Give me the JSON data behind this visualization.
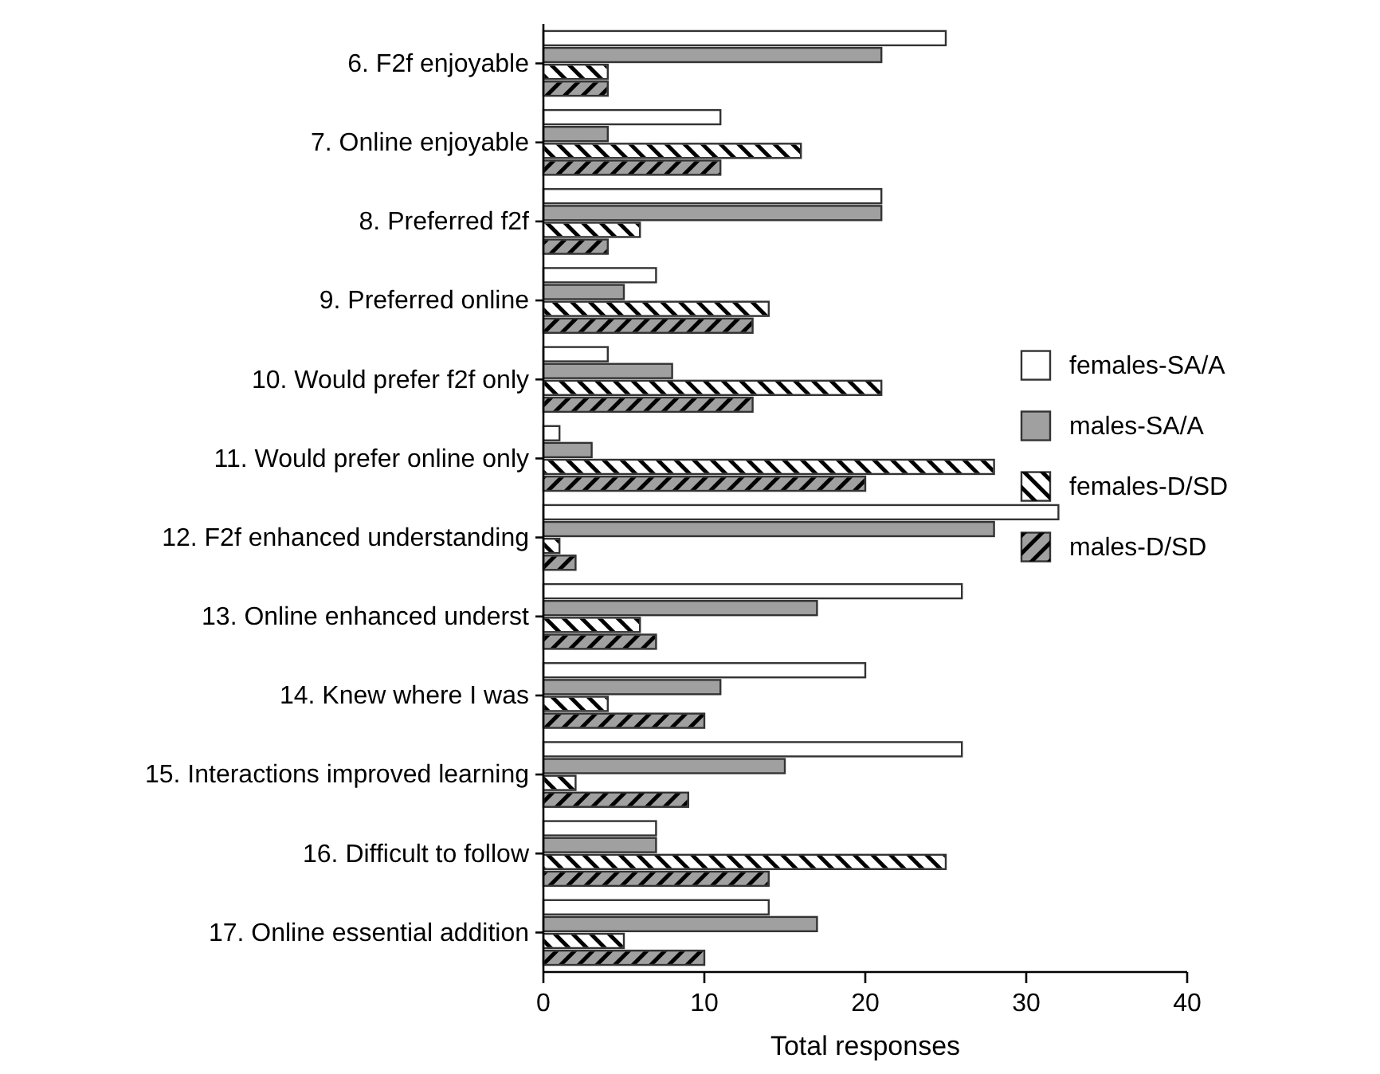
{
  "chart_data": {
    "type": "bar",
    "orientation": "horizontal",
    "xlabel": "Total responses",
    "categories": [
      "6. F2f enjoyable",
      "7. Online enjoyable",
      "8. Preferred f2f",
      "9. Preferred online",
      "10. Would prefer f2f only",
      "11. Would prefer online only",
      "12. F2f enhanced understanding",
      "13. Online enhanced underst",
      "14. Knew where I was",
      "15. Interactions improved learning",
      "16. Difficult to follow",
      "17. Online essential addition"
    ],
    "series": [
      {
        "name": "females-SA/A",
        "color": "#ffffff",
        "values": [
          25,
          11,
          21,
          7,
          4,
          1,
          32,
          26,
          20,
          26,
          7,
          14
        ]
      },
      {
        "name": "males-SA/A",
        "color": "#a0a0a0",
        "values": [
          21,
          4,
          21,
          5,
          8,
          3,
          28,
          17,
          11,
          15,
          7,
          17
        ]
      },
      {
        "name": "females-D/SD",
        "color": "#ffffff",
        "values": [
          4,
          16,
          6,
          14,
          21,
          28,
          1,
          6,
          4,
          2,
          25,
          5
        ]
      },
      {
        "name": "males-D/SD",
        "color": "#a0a0a0",
        "values": [
          4,
          11,
          4,
          13,
          13,
          20,
          2,
          7,
          10,
          9,
          14,
          10
        ]
      }
    ],
    "xlim": [
      0,
      40
    ],
    "xticks": [
      0,
      10,
      20,
      30,
      40
    ],
    "legend": "right",
    "grid": false
  }
}
